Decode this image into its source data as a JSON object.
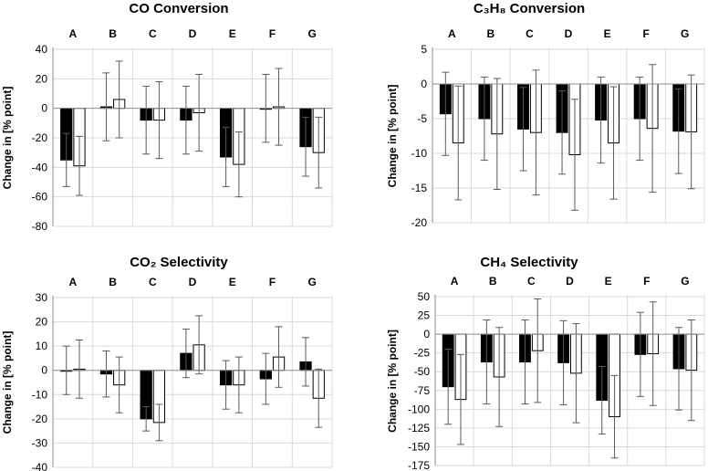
{
  "chart_data": [
    {
      "type": "bar",
      "title": "CO Conversion",
      "ylabel": "Change in [% point]",
      "ylim": [
        -80,
        40
      ],
      "yticks": [
        40,
        20,
        0,
        -20,
        -40,
        -60,
        -80
      ],
      "categories": [
        "A",
        "B",
        "C",
        "D",
        "E",
        "F",
        "G"
      ],
      "series": [
        {
          "name": "black",
          "color": "#000000",
          "values": [
            -35,
            1,
            -8,
            -8,
            -33,
            0,
            -26
          ],
          "errors": [
            18,
            23,
            23,
            23,
            20,
            23,
            20
          ]
        },
        {
          "name": "white",
          "color": "#ffffff",
          "values": [
            -39,
            6,
            -8,
            -3,
            -38,
            1,
            -30
          ],
          "errors": [
            20,
            26,
            26,
            26,
            22,
            26,
            24
          ]
        }
      ]
    },
    {
      "type": "bar",
      "title": "C₃H₈ Conversion",
      "ylabel": "Change in [% point]",
      "ylim": [
        -20,
        5
      ],
      "yticks": [
        5,
        0,
        -5,
        -10,
        -15,
        -20
      ],
      "categories": [
        "A",
        "B",
        "C",
        "D",
        "E",
        "F",
        "G"
      ],
      "series": [
        {
          "name": "black",
          "color": "#000000",
          "values": [
            -4.3,
            -5.0,
            -6.5,
            -7.0,
            -5.2,
            -5.0,
            -6.8
          ],
          "errors": [
            6.0,
            6.0,
            6.0,
            6.0,
            6.2,
            6.0,
            6.1
          ]
        },
        {
          "name": "white",
          "color": "#ffffff",
          "values": [
            -8.5,
            -7.2,
            -7.0,
            -10.2,
            -8.5,
            -6.4,
            -6.9
          ],
          "errors": [
            8.2,
            8.0,
            9.0,
            8.0,
            8.1,
            9.2,
            8.2
          ]
        }
      ]
    },
    {
      "type": "bar",
      "title": "CO₂ Selectivity",
      "ylabel": "Change in [% point]",
      "ylim": [
        -40,
        30
      ],
      "yticks": [
        30,
        20,
        10,
        0,
        -10,
        -20,
        -30,
        -40
      ],
      "categories": [
        "A",
        "B",
        "C",
        "D",
        "E",
        "F",
        "G"
      ],
      "series": [
        {
          "name": "black",
          "color": "#000000",
          "values": [
            0,
            -1.5,
            -20,
            7,
            -6,
            -3.5,
            3.5
          ],
          "errors": [
            10,
            9.5,
            5,
            10,
            10,
            10.5,
            10
          ]
        },
        {
          "name": "white",
          "color": "#ffffff",
          "values": [
            0.5,
            -6,
            -21.5,
            10.5,
            -6,
            5.5,
            -11.5
          ],
          "errors": [
            12,
            11.5,
            7.5,
            12,
            11.5,
            12.5,
            12
          ]
        }
      ]
    },
    {
      "type": "bar",
      "title": "CH₄ Selectivity",
      "ylabel": "Change in [% point]",
      "ylim": [
        -175,
        50
      ],
      "yticks": [
        50,
        25,
        0,
        -25,
        -50,
        -75,
        -100,
        -125,
        -150,
        -175
      ],
      "categories": [
        "A",
        "B",
        "C",
        "D",
        "E",
        "F",
        "G"
      ],
      "series": [
        {
          "name": "black",
          "color": "#000000",
          "values": [
            -70,
            -37,
            -37,
            -38,
            -88,
            -27,
            -46
          ],
          "errors": [
            50,
            56,
            56,
            56,
            45,
            56,
            55
          ]
        },
        {
          "name": "white",
          "color": "#ffffff",
          "values": [
            -87,
            -57,
            -22,
            -52,
            -110,
            -26,
            -48
          ],
          "errors": [
            60,
            66,
            69,
            66,
            55,
            69,
            67
          ]
        }
      ]
    }
  ]
}
